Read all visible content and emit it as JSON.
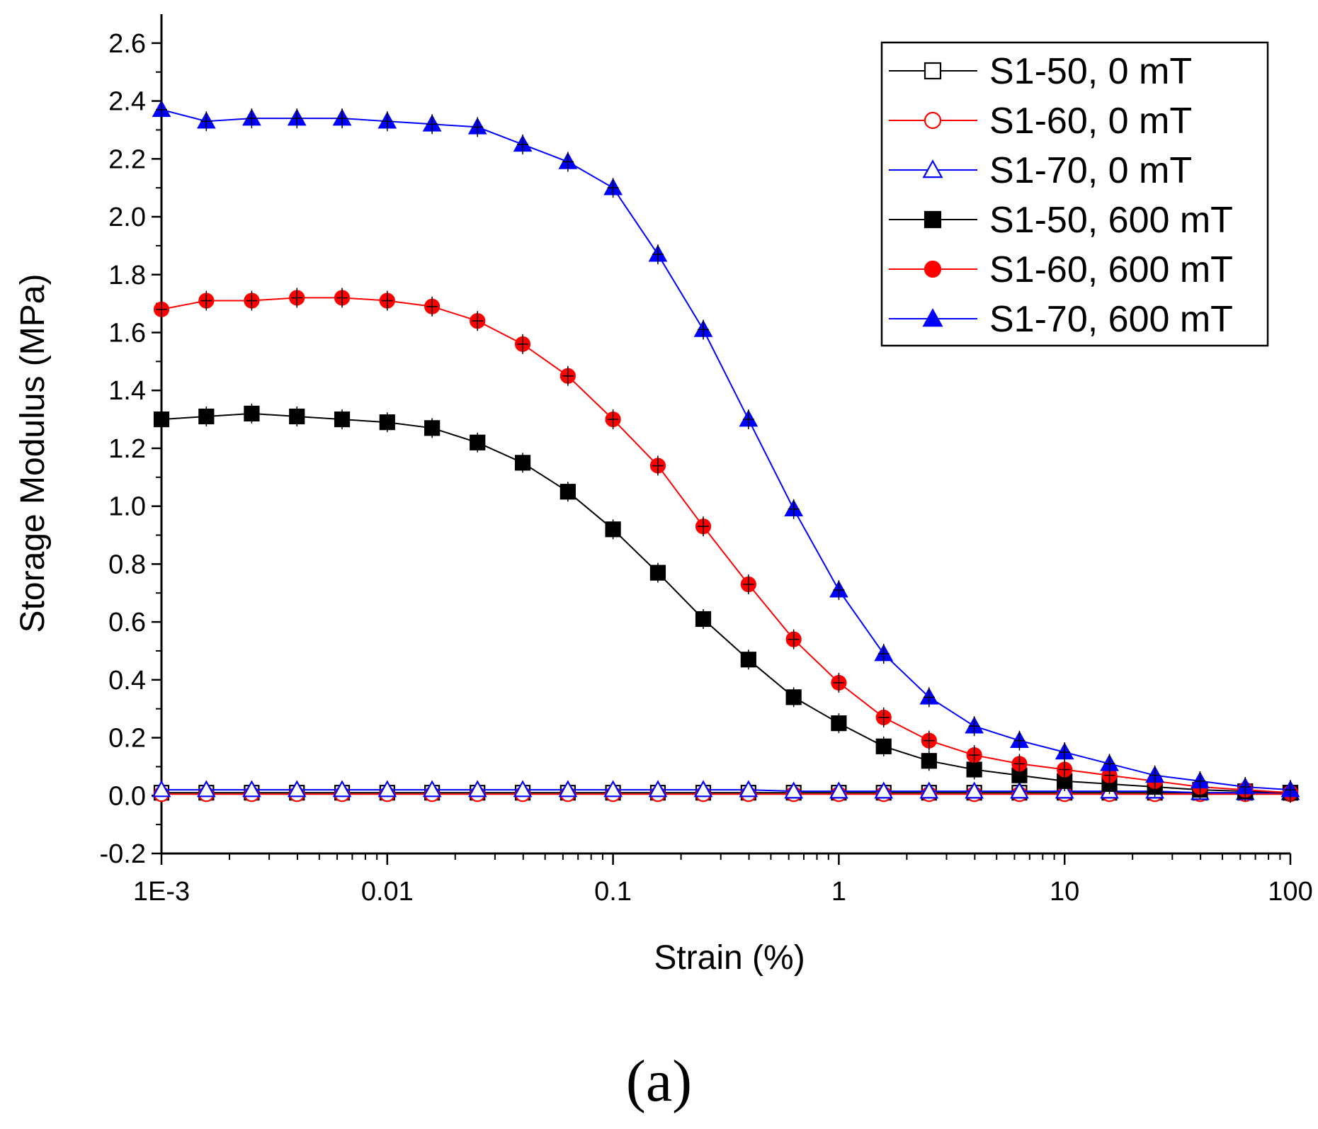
{
  "chart_data": {
    "type": "line",
    "title": "",
    "xlabel": "Strain (%)",
    "ylabel": "Storage Modulus (MPa)",
    "xscale": "log",
    "xlim": [
      0.001,
      100
    ],
    "ylim": [
      -0.2,
      2.7
    ],
    "x_ticks": [
      {
        "value": 0.001,
        "label": "1E-3"
      },
      {
        "value": 0.01,
        "label": "0.01"
      },
      {
        "value": 0.1,
        "label": "0.1"
      },
      {
        "value": 1,
        "label": "1"
      },
      {
        "value": 10,
        "label": "10"
      },
      {
        "value": 100,
        "label": "100"
      }
    ],
    "y_ticks": [
      {
        "value": -0.2,
        "label": "-0.2"
      },
      {
        "value": 0.0,
        "label": "0.0"
      },
      {
        "value": 0.2,
        "label": "0.2"
      },
      {
        "value": 0.4,
        "label": "0.4"
      },
      {
        "value": 0.6,
        "label": "0.6"
      },
      {
        "value": 0.8,
        "label": "0.8"
      },
      {
        "value": 1.0,
        "label": "1.0"
      },
      {
        "value": 1.2,
        "label": "1.2"
      },
      {
        "value": 1.4,
        "label": "1.4"
      },
      {
        "value": 1.6,
        "label": "1.6"
      },
      {
        "value": 1.8,
        "label": "1.8"
      },
      {
        "value": 2.0,
        "label": "2.0"
      },
      {
        "value": 2.2,
        "label": "2.2"
      },
      {
        "value": 2.4,
        "label": "2.4"
      },
      {
        "value": 2.6,
        "label": "2.6"
      }
    ],
    "legend_position": "top-right",
    "x": [
      0.001,
      0.00158,
      0.00251,
      0.00398,
      0.00631,
      0.01,
      0.0158,
      0.0251,
      0.0398,
      0.0631,
      0.1,
      0.158,
      0.251,
      0.398,
      0.631,
      1,
      1.58,
      2.51,
      3.98,
      6.31,
      10,
      15.8,
      25.1,
      39.8,
      63.1,
      100
    ],
    "series": [
      {
        "name": "S1-50, 0 mT",
        "color": "#000000",
        "marker": "square",
        "filled": false,
        "values": [
          0.01,
          0.01,
          0.01,
          0.01,
          0.01,
          0.01,
          0.01,
          0.01,
          0.01,
          0.01,
          0.01,
          0.01,
          0.01,
          0.01,
          0.01,
          0.01,
          0.01,
          0.01,
          0.01,
          0.01,
          0.01,
          0.01,
          0.01,
          0.01,
          0.01,
          0.01
        ]
      },
      {
        "name": "S1-60, 0 mT",
        "color": "#ff0000",
        "marker": "circle",
        "filled": false,
        "values": [
          0.005,
          0.005,
          0.005,
          0.005,
          0.005,
          0.005,
          0.005,
          0.005,
          0.005,
          0.005,
          0.005,
          0.005,
          0.005,
          0.005,
          0.005,
          0.005,
          0.005,
          0.005,
          0.005,
          0.005,
          0.005,
          0.005,
          0.005,
          0.005,
          0.005,
          0.005
        ]
      },
      {
        "name": "S1-70, 0 mT",
        "color": "#0000ff",
        "marker": "triangle",
        "filled": false,
        "values": [
          0.02,
          0.02,
          0.02,
          0.02,
          0.02,
          0.02,
          0.02,
          0.02,
          0.02,
          0.02,
          0.02,
          0.02,
          0.02,
          0.02,
          0.015,
          0.015,
          0.015,
          0.015,
          0.015,
          0.015,
          0.015,
          0.015,
          0.015,
          0.01,
          0.01,
          0.01
        ]
      },
      {
        "name": "S1-50, 600 mT",
        "color": "#000000",
        "marker": "square",
        "filled": true,
        "values": [
          1.3,
          1.31,
          1.32,
          1.31,
          1.3,
          1.29,
          1.27,
          1.22,
          1.15,
          1.05,
          0.92,
          0.77,
          0.61,
          0.47,
          0.34,
          0.25,
          0.17,
          0.12,
          0.09,
          0.07,
          0.05,
          0.04,
          0.03,
          0.02,
          0.015,
          0.01
        ]
      },
      {
        "name": "S1-60, 600 mT",
        "color": "#ff0000",
        "marker": "circle",
        "filled": true,
        "values": [
          1.68,
          1.71,
          1.71,
          1.72,
          1.72,
          1.71,
          1.69,
          1.64,
          1.56,
          1.45,
          1.3,
          1.14,
          0.93,
          0.73,
          0.54,
          0.39,
          0.27,
          0.19,
          0.14,
          0.11,
          0.09,
          0.07,
          0.05,
          0.03,
          0.02,
          0.01
        ]
      },
      {
        "name": "S1-70, 600 mT",
        "color": "#0000ff",
        "marker": "triangle",
        "filled": true,
        "values": [
          2.37,
          2.33,
          2.34,
          2.34,
          2.34,
          2.33,
          2.32,
          2.31,
          2.25,
          2.19,
          2.1,
          1.87,
          1.61,
          1.3,
          0.99,
          0.71,
          0.49,
          0.34,
          0.24,
          0.19,
          0.15,
          0.11,
          0.07,
          0.05,
          0.03,
          0.02
        ]
      }
    ]
  },
  "caption": "(a)"
}
